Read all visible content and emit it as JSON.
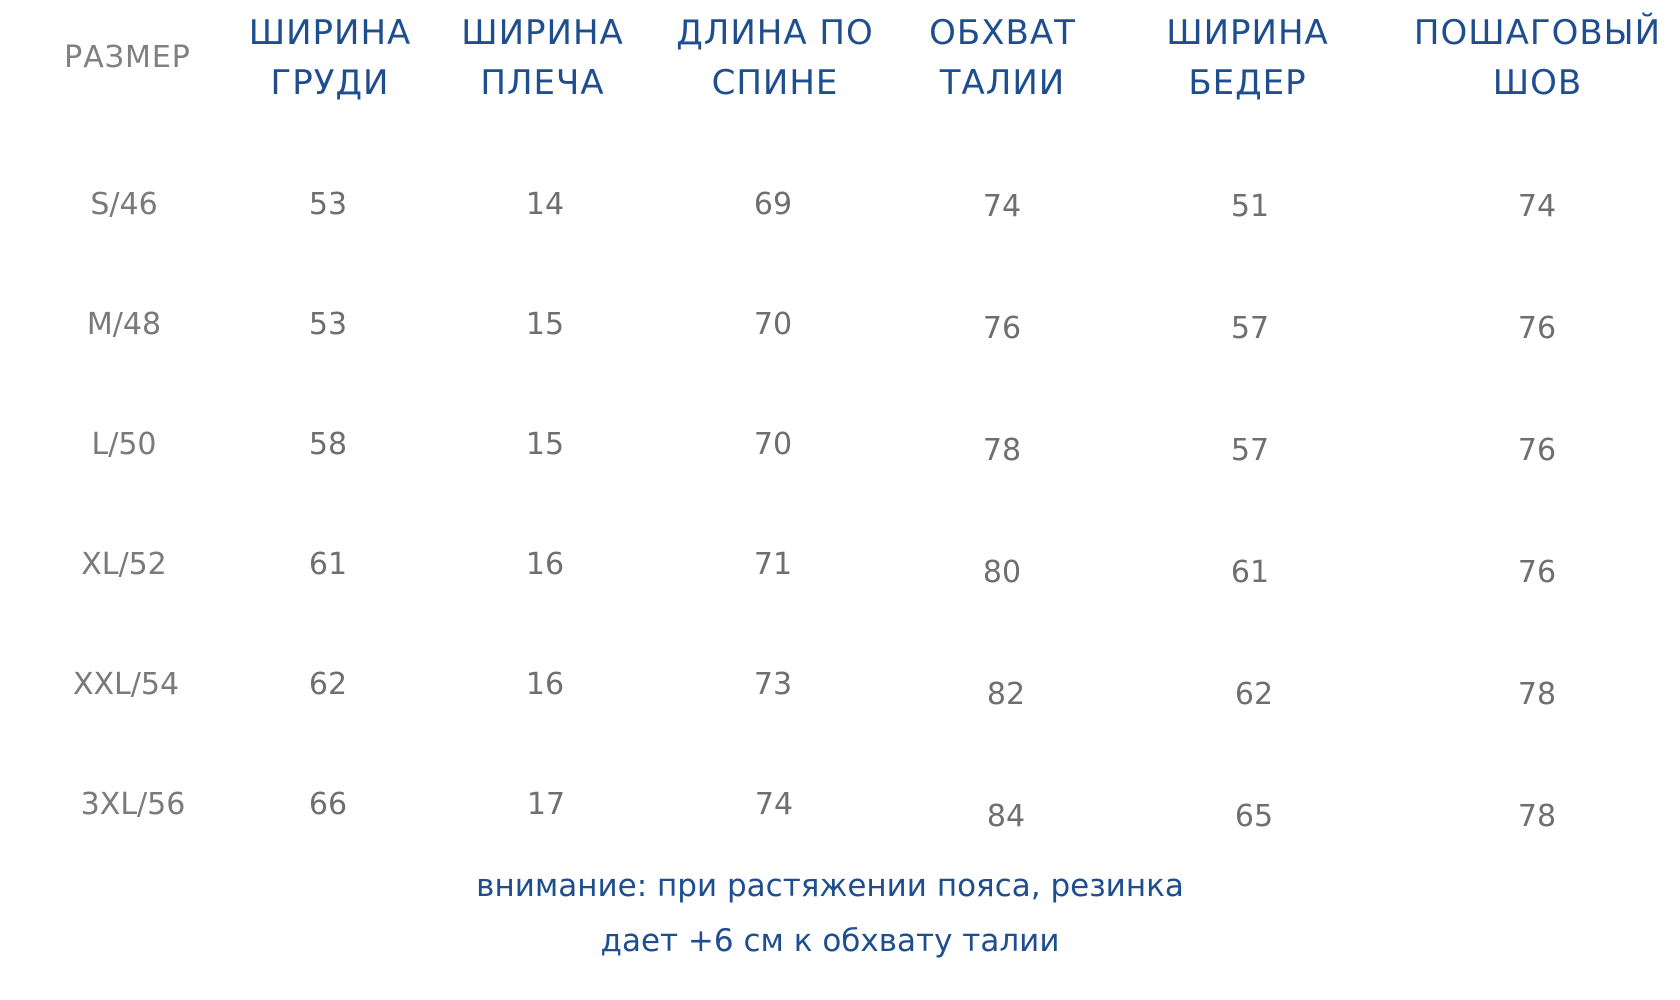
{
  "table": {
    "headers": [
      {
        "line1": "РАЗМЕР",
        "line2": ""
      },
      {
        "line1": "ШИРИНА",
        "line2": "ГРУДИ"
      },
      {
        "line1": "ШИРИНА",
        "line2": "ПЛЕЧА"
      },
      {
        "line1": "ДЛИНА ПО",
        "line2": "СПИНЕ"
      },
      {
        "line1": "ОБХВАТ",
        "line2": "ТАЛИИ"
      },
      {
        "line1": "ШИРИНА",
        "line2": "БЕДЕР"
      },
      {
        "line1": "ПОШАГОВЫЙ",
        "line2": "ШОВ"
      }
    ],
    "rows": [
      [
        "S/46",
        "53",
        "14",
        "69",
        "74",
        "51",
        "74"
      ],
      [
        "M/48",
        "53",
        "15",
        "70",
        "76",
        "57",
        "76"
      ],
      [
        "L/50",
        "58",
        "15",
        "70",
        "78",
        "57",
        "76"
      ],
      [
        "XL/52",
        "61",
        "16",
        "71",
        "80",
        "61",
        "76"
      ],
      [
        "XXL/54",
        "62",
        "16",
        "73",
        "82",
        "62",
        "78"
      ],
      [
        "3XL/56",
        "66",
        "17",
        "74",
        "84",
        "65",
        "78"
      ]
    ]
  },
  "note": {
    "line1": "внимание: при растяжении пояса, резинка",
    "line2": "дает +6 см к обхвату талии"
  },
  "colors": {
    "header": "#1f4e8f",
    "size_header": "#808080",
    "values": "#6f6f6f"
  }
}
